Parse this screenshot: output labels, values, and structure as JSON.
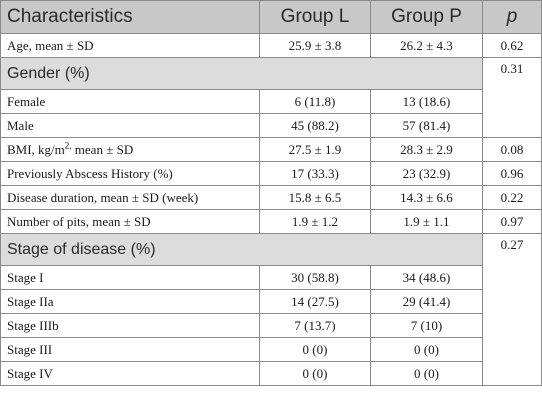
{
  "header": {
    "characteristics": "Characteristics",
    "group_l": "Group L",
    "group_p": "Group P",
    "p": "p"
  },
  "rows": {
    "age": {
      "label": "Age, mean ± SD",
      "l": "25.9 ± 3.8",
      "p_group": "26.2 ± 4.3",
      "p": "0.62"
    },
    "gender": {
      "label": "Gender (%)",
      "p": "0.31"
    },
    "female": {
      "label": "Female",
      "l": "6 (11.8)",
      "p_group": "13 (18.6)"
    },
    "male": {
      "label": "Male",
      "l": "45 (88.2)",
      "p_group": "57 (81.4)"
    },
    "bmi": {
      "label_pre": "BMI, kg/m",
      "label_sup": "2,",
      "label_post": " mean ± SD",
      "l": "27.5 ± 1.9",
      "p_group": "28.3 ± 2.9",
      "p": "0.08"
    },
    "abscess": {
      "label": "Previously Abscess History (%)",
      "l": "17 (33.3)",
      "p_group": "23 (32.9)",
      "p": "0.96"
    },
    "duration": {
      "label": "Disease duration, mean ± SD (week)",
      "l": "15.8 ± 6.5",
      "p_group": "14.3 ± 6.6",
      "p": "0.22"
    },
    "pits": {
      "label": "Number of pits, mean ± SD",
      "l": "1.9 ± 1.2",
      "p_group": "1.9 ± 1.1",
      "p": "0.97"
    },
    "stage": {
      "label": "Stage of disease (%)",
      "p": "0.27"
    },
    "stage_i": {
      "label": "Stage I",
      "l": "30 (58.8)",
      "p_group": "34 (48.6)"
    },
    "stage_iia": {
      "label": "Stage IIa",
      "l": "14 (27.5)",
      "p_group": "29 (41.4)"
    },
    "stage_iiib": {
      "label": "Stage IIIb",
      "l": "7 (13.7)",
      "p_group": "7 (10)"
    },
    "stage_iii": {
      "label": "Stage III",
      "l": "0 (0)",
      "p_group": "0 (0)"
    },
    "stage_iv": {
      "label": "Stage IV",
      "l": "0 (0)",
      "p_group": "0 (0)"
    }
  }
}
